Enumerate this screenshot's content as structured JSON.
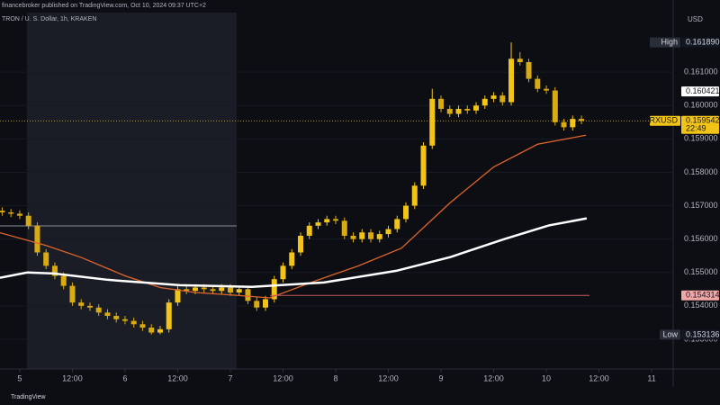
{
  "header": {
    "publisher": "financebroker published on TradingView.com, Oct 10, 2024 09:37 UTC+2",
    "symbol": "TRON / U. S. Dollar, 1h, KRAKEN",
    "currency": "USD",
    "footer": "TradingView"
  },
  "chart_data": {
    "type": "candlestick",
    "xlim": [
      -4.5,
      148.5
    ],
    "xticks": [
      {
        "value": 0,
        "label": "5"
      },
      {
        "value": 12,
        "label": "12:00"
      },
      {
        "value": 24,
        "label": "6"
      },
      {
        "value": 36,
        "label": "12:00"
      },
      {
        "value": 48,
        "label": "7"
      },
      {
        "value": 60,
        "label": "12:00"
      },
      {
        "value": 72,
        "label": "8"
      },
      {
        "value": 84,
        "label": "12:00"
      },
      {
        "value": 96,
        "label": "9"
      },
      {
        "value": 108,
        "label": "12:00"
      },
      {
        "value": 120,
        "label": "10"
      },
      {
        "value": 132,
        "label": "12:00"
      },
      {
        "value": 144,
        "label": "11"
      }
    ],
    "ylim": [
      0.15211,
      0.16316
    ],
    "yticks": [
      {
        "value": 0.153,
        "label": "0.153000"
      },
      {
        "value": 0.154,
        "label": "0.154000"
      },
      {
        "value": 0.155,
        "label": "0.155000"
      },
      {
        "value": 0.156,
        "label": "0.156000"
      },
      {
        "value": 0.157,
        "label": "0.157000"
      },
      {
        "value": 0.158,
        "label": "0.158000"
      },
      {
        "value": 0.159,
        "label": "0.159000"
      },
      {
        "value": 0.16,
        "label": "0.160000"
      },
      {
        "value": 0.161,
        "label": "0.161000"
      }
    ],
    "up_color": "#f2c418",
    "down_color": "#d9ab12",
    "x": [
      -4,
      -2,
      0,
      2,
      4,
      6,
      8,
      10,
      12,
      14,
      16,
      18,
      20,
      22,
      24,
      26,
      28,
      30,
      32,
      34,
      36,
      38,
      40,
      42,
      44,
      46,
      48,
      50,
      52,
      54,
      56,
      58,
      60,
      62,
      64,
      66,
      68,
      70,
      72,
      74,
      76,
      78,
      80,
      82,
      84,
      86,
      88,
      90,
      92,
      94,
      96,
      98,
      100,
      102,
      104,
      106,
      108,
      110,
      112,
      114,
      116,
      118,
      120,
      122,
      124,
      126,
      128
    ],
    "open": [
      0.15685,
      0.1568,
      0.15676,
      0.1567,
      0.1564,
      0.1556,
      0.1552,
      0.1549,
      0.1546,
      0.1541,
      0.154,
      0.15395,
      0.1538,
      0.1537,
      0.1536,
      0.15355,
      0.15345,
      0.15335,
      0.1532,
      0.1533,
      0.1541,
      0.1545,
      0.15445,
      0.15455,
      0.1545,
      0.15445,
      0.15455,
      0.1544,
      0.1545,
      0.15415,
      0.15395,
      0.1542,
      0.1548,
      0.1552,
      0.1556,
      0.1561,
      0.1564,
      0.1565,
      0.1566,
      0.15655,
      0.1561,
      0.156,
      0.1562,
      0.156,
      0.15615,
      0.1563,
      0.1566,
      0.157,
      0.1576,
      0.1588,
      0.1602,
      0.1599,
      0.15975,
      0.1599,
      0.15985,
      0.16,
      0.1602,
      0.1603,
      0.1601,
      0.1614,
      0.1613,
      0.1608,
      0.1605,
      0.16045,
      0.1595,
      0.15935,
      0.1596
    ],
    "high": [
      0.15695,
      0.1569,
      0.15686,
      0.1568,
      0.1565,
      0.1557,
      0.1553,
      0.155,
      0.1547,
      0.1542,
      0.1541,
      0.15405,
      0.1539,
      0.1538,
      0.1537,
      0.15365,
      0.15355,
      0.15345,
      0.1534,
      0.1542,
      0.1546,
      0.1546,
      0.15465,
      0.15465,
      0.1546,
      0.15465,
      0.15465,
      0.1546,
      0.1546,
      0.15425,
      0.1543,
      0.1549,
      0.1553,
      0.1557,
      0.1562,
      0.1565,
      0.1566,
      0.1567,
      0.1567,
      0.15665,
      0.1562,
      0.1563,
      0.1563,
      0.15625,
      0.1564,
      0.1567,
      0.1571,
      0.1577,
      0.1589,
      0.1605,
      0.1603,
      0.16,
      0.16,
      0.16,
      0.1601,
      0.1603,
      0.1604,
      0.1604,
      0.16189,
      0.1616,
      0.1614,
      0.1609,
      0.1606,
      0.16055,
      0.1596,
      0.1597,
      0.1597
    ],
    "low": [
      0.1567,
      0.15666,
      0.1566,
      0.1563,
      0.1555,
      0.1551,
      0.1548,
      0.1545,
      0.154,
      0.1539,
      0.15385,
      0.1537,
      0.1536,
      0.1535,
      0.15345,
      0.15335,
      0.15325,
      0.15314,
      0.15315,
      0.1532,
      0.154,
      0.15435,
      0.15435,
      0.1544,
      0.15435,
      0.15435,
      0.1543,
      0.1543,
      0.15405,
      0.15385,
      0.15385,
      0.1541,
      0.1547,
      0.1551,
      0.1555,
      0.156,
      0.1563,
      0.1564,
      0.15645,
      0.156,
      0.1559,
      0.1559,
      0.1559,
      0.1559,
      0.15605,
      0.1562,
      0.1565,
      0.1569,
      0.1575,
      0.1587,
      0.1598,
      0.15965,
      0.15965,
      0.15975,
      0.15975,
      0.1599,
      0.1601,
      0.16,
      0.16,
      0.1612,
      0.1607,
      0.1604,
      0.16035,
      0.1594,
      0.15925,
      0.15925,
      0.15944
    ],
    "close": [
      0.1568,
      0.15676,
      0.1567,
      0.1564,
      0.1556,
      0.1552,
      0.1549,
      0.1546,
      0.1541,
      0.154,
      0.15395,
      0.1538,
      0.1537,
      0.1536,
      0.15355,
      0.15345,
      0.15335,
      0.1532,
      0.1533,
      0.1541,
      0.1545,
      0.15445,
      0.15455,
      0.1545,
      0.15445,
      0.15455,
      0.1544,
      0.1545,
      0.15415,
      0.15395,
      0.1542,
      0.1548,
      0.1552,
      0.1556,
      0.1561,
      0.1564,
      0.1565,
      0.1566,
      0.15655,
      0.1561,
      0.156,
      0.1562,
      0.156,
      0.15615,
      0.1563,
      0.1566,
      0.157,
      0.1576,
      0.1588,
      0.1602,
      0.1599,
      0.15975,
      0.1599,
      0.15985,
      0.16,
      0.1602,
      0.1603,
      0.1601,
      0.1614,
      0.1613,
      0.1608,
      0.1605,
      0.16045,
      0.1595,
      0.15935,
      0.1596,
      0.15954
    ],
    "lines": [
      {
        "color": "#e0642a",
        "x": [
          -4.5,
          6,
          14,
          24,
          32,
          40,
          49,
          57,
          67,
          77,
          87,
          98,
          108,
          118,
          129
        ],
        "values": [
          0.15619,
          0.15581,
          0.15545,
          0.1549,
          0.15455,
          0.1544,
          0.15432,
          0.15424,
          0.15473,
          0.15519,
          0.15573,
          0.15708,
          0.15816,
          0.15884,
          0.15911
        ]
      },
      {
        "color": "#ffffff",
        "x": [
          -4.5,
          1.7,
          7.8,
          20.1,
          36.5,
          52.9,
          69.3,
          85.8,
          98.1,
          110.4,
          120.6,
          129.2
        ],
        "values": [
          0.15484,
          0.155,
          0.15497,
          0.15478,
          0.15462,
          0.15457,
          0.1547,
          0.15505,
          0.15546,
          0.156,
          0.15641,
          0.15662
        ]
      }
    ],
    "price_labels": [
      {
        "tag": "High",
        "value": 0.16189,
        "label": "0.161890",
        "color": "#131722",
        "text_color": "#d1d4dc"
      },
      {
        "value": 0.160421,
        "label": "0.160421",
        "color": "#ffffff",
        "text_color": "#131722"
      },
      {
        "tag": "TRXUSD",
        "value": 0.159542,
        "label": "0.159542",
        "countdown": "22:49",
        "color": "#f2c418",
        "text_color": "#131722"
      },
      {
        "value": 0.154314,
        "label": "0.154314",
        "color": "#f4a6a6",
        "text_color": "#131722"
      },
      {
        "tag": "Low",
        "value": 0.153136,
        "label": "0.153136",
        "color": "#131722",
        "text_color": "#d1d4dc"
      }
    ]
  }
}
